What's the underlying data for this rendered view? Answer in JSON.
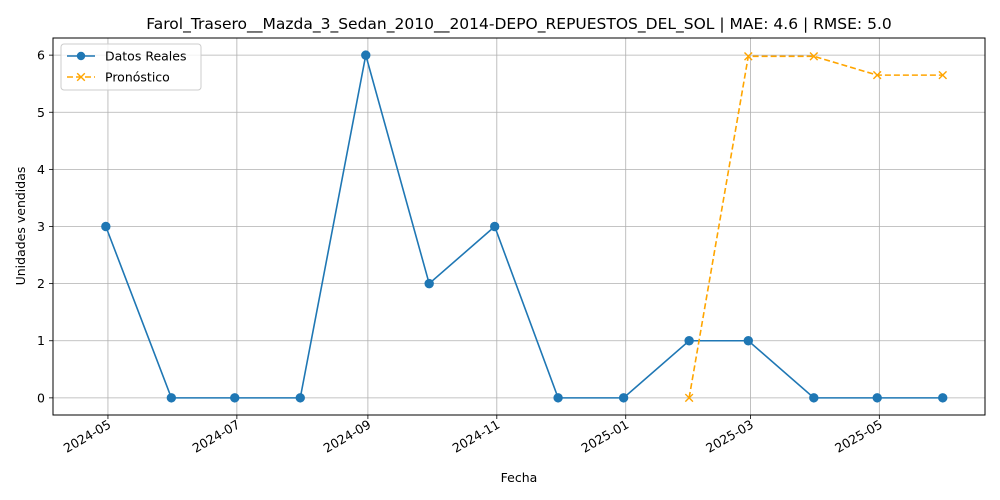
{
  "chart_data": {
    "type": "line",
    "title": "Farol_Trasero__Mazda_3_Sedan_2010__2014-DEPO_REPUESTOS_DEL_SOL | MAE: 4.6 | RMSE: 5.0",
    "xlabel": "Fecha",
    "ylabel": "Unidades vendidas",
    "xlim": [
      "2024-04-05",
      "2025-06-20"
    ],
    "ylim": [
      -0.3,
      6.3
    ],
    "grid": true,
    "legend_position": "top-left",
    "x_ticks": [
      "2024-05",
      "2024-07",
      "2024-09",
      "2024-11",
      "2025-01",
      "2025-03",
      "2025-05"
    ],
    "y_ticks": [
      0,
      1,
      2,
      3,
      4,
      5,
      6
    ],
    "series": [
      {
        "name": "Datos Reales",
        "color": "#1f77b4",
        "style": "solid",
        "marker": "circle",
        "x": [
          "2024-04-30",
          "2024-05-31",
          "2024-06-30",
          "2024-07-31",
          "2024-08-31",
          "2024-09-30",
          "2024-10-31",
          "2024-11-30",
          "2024-12-31",
          "2025-01-31",
          "2025-02-28",
          "2025-03-31",
          "2025-04-30",
          "2025-05-31"
        ],
        "values": [
          3,
          0,
          0,
          0,
          6,
          2,
          3,
          0,
          0,
          1,
          1,
          0,
          0,
          0
        ]
      },
      {
        "name": "Pronóstico",
        "color": "#ffa500",
        "style": "dashed",
        "marker": "x",
        "x": [
          "2025-01-31",
          "2025-02-28",
          "2025-03-31",
          "2025-04-30",
          "2025-05-31"
        ],
        "values": [
          0,
          5.98,
          5.98,
          5.65,
          5.65
        ]
      }
    ]
  }
}
